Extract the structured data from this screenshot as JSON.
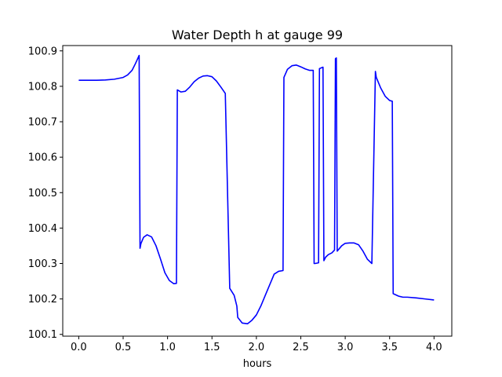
{
  "chart_data": {
    "type": "line",
    "title": "Water Depth h at gauge 99",
    "xlabel": "hours",
    "ylabel": "",
    "xlim": [
      -0.18,
      4.2
    ],
    "ylim": [
      100.095,
      100.915
    ],
    "xticks": [
      0.0,
      0.5,
      1.0,
      1.5,
      2.0,
      2.5,
      3.0,
      3.5,
      4.0
    ],
    "xtick_labels": [
      "0.0",
      "0.5",
      "1.0",
      "1.5",
      "2.0",
      "2.5",
      "3.0",
      "3.5",
      "4.0"
    ],
    "yticks": [
      100.1,
      100.2,
      100.3,
      100.4,
      100.5,
      100.6,
      100.7,
      100.8,
      100.9
    ],
    "ytick_labels": [
      "100.1",
      "100.2",
      "100.3",
      "100.4",
      "100.5",
      "100.6",
      "100.7",
      "100.8",
      "100.9"
    ],
    "grid": false,
    "legend": "none",
    "series": [
      {
        "color": "#0000ff",
        "x": [
          0.0,
          0.1,
          0.2,
          0.3,
          0.4,
          0.5,
          0.55,
          0.6,
          0.64,
          0.68,
          0.69,
          0.7,
          0.73,
          0.77,
          0.82,
          0.87,
          0.92,
          0.97,
          1.02,
          1.07,
          1.1,
          1.11,
          1.15,
          1.2,
          1.25,
          1.3,
          1.35,
          1.4,
          1.45,
          1.5,
          1.55,
          1.6,
          1.65,
          1.7,
          1.75,
          1.78,
          1.79,
          1.84,
          1.9,
          1.95,
          2.0,
          2.05,
          2.1,
          2.15,
          2.2,
          2.25,
          2.3,
          2.31,
          2.35,
          2.4,
          2.45,
          2.5,
          2.55,
          2.6,
          2.64,
          2.65,
          2.66,
          2.7,
          2.71,
          2.75,
          2.76,
          2.78,
          2.81,
          2.85,
          2.88,
          2.89,
          2.9,
          2.91,
          2.96,
          3.0,
          3.05,
          3.1,
          3.15,
          3.2,
          3.25,
          3.3,
          3.34,
          3.35,
          3.4,
          3.45,
          3.5,
          3.53,
          3.54,
          3.6,
          3.65,
          3.7,
          3.8,
          3.9,
          4.0
        ],
        "y": [
          100.817,
          100.817,
          100.817,
          100.818,
          100.82,
          100.825,
          100.832,
          100.845,
          100.865,
          100.887,
          100.343,
          100.356,
          100.374,
          100.381,
          100.375,
          100.35,
          100.313,
          100.274,
          100.252,
          100.243,
          100.244,
          100.79,
          100.784,
          100.786,
          100.798,
          100.813,
          100.823,
          100.829,
          100.83,
          100.827,
          100.815,
          100.798,
          100.78,
          100.23,
          100.21,
          100.18,
          100.148,
          100.132,
          100.13,
          100.14,
          100.155,
          100.18,
          100.21,
          100.24,
          100.27,
          100.278,
          100.28,
          100.825,
          100.848,
          100.858,
          100.86,
          100.855,
          100.849,
          100.845,
          100.845,
          100.3,
          100.3,
          100.302,
          100.85,
          100.854,
          100.308,
          100.318,
          100.325,
          100.33,
          100.338,
          100.878,
          100.88,
          100.335,
          100.35,
          100.357,
          100.358,
          100.358,
          100.353,
          100.335,
          100.312,
          100.3,
          100.842,
          100.825,
          100.795,
          100.772,
          100.76,
          100.758,
          100.215,
          100.208,
          100.205,
          100.205,
          100.203,
          100.2,
          100.197
        ]
      }
    ]
  }
}
